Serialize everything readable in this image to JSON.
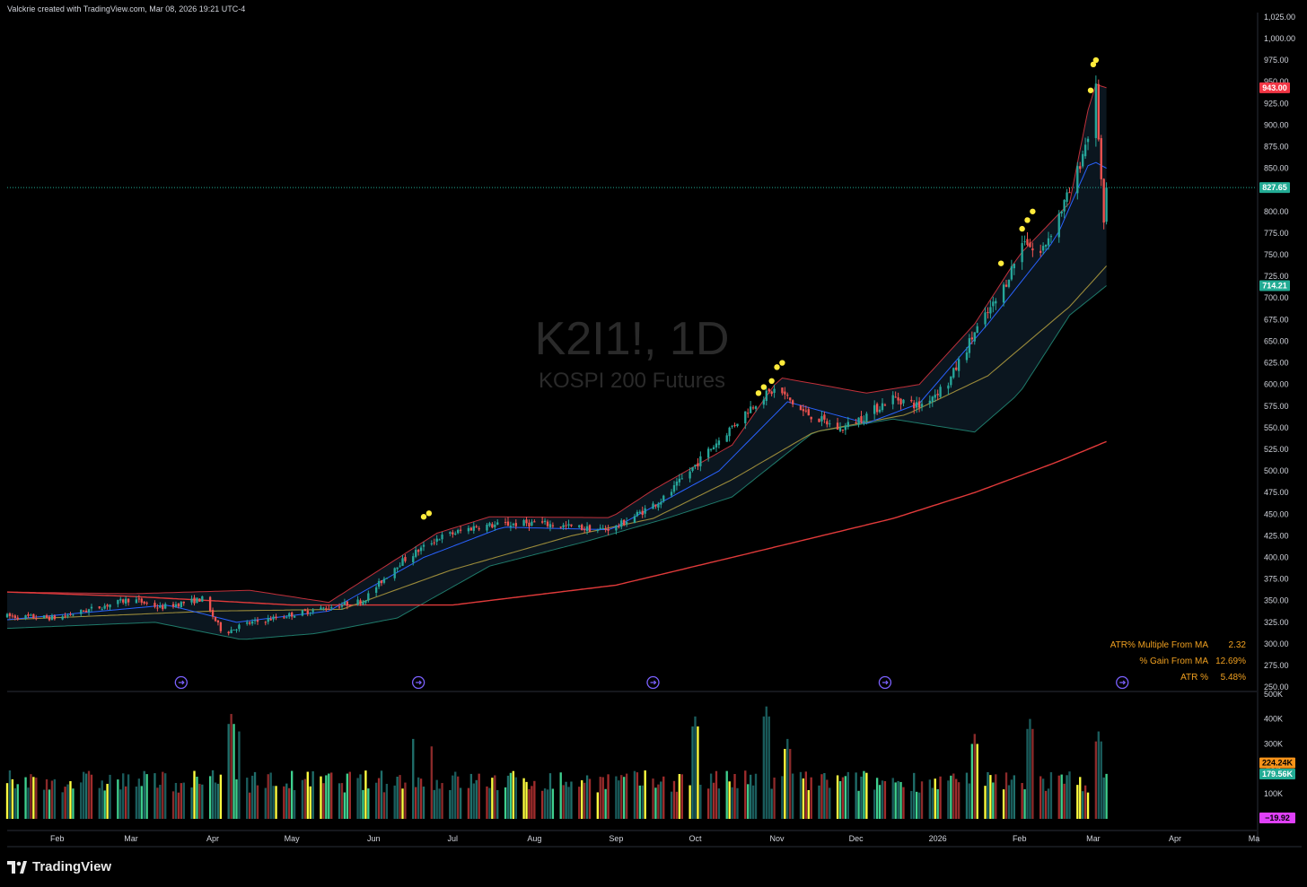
{
  "caption": "Valckrie created with TradingView.com, Mar 08, 2026 19:21 UTC-4",
  "brand": "TradingView",
  "watermark": {
    "symbol": "K2I1!, 1D",
    "name": "KOSPI 200 Futures"
  },
  "stats": [
    {
      "label": "ATR% Multiple From MA",
      "value": "2.32"
    },
    {
      "label": "% Gain From MA",
      "value": "12.69%"
    },
    {
      "label": "ATR %",
      "value": "5.48%"
    }
  ],
  "price_tags": [
    {
      "label": "943.00",
      "value": 943,
      "color": "#f23645"
    },
    {
      "label": "827.65",
      "value": 827.65,
      "color": "#22ab94"
    },
    {
      "label": "714.21",
      "value": 714.21,
      "color": "#22ab94"
    }
  ],
  "volume_tags": [
    {
      "label": "224.24K",
      "value": 224.24,
      "color": "#f7931a",
      "text_color": "#000000"
    },
    {
      "label": "179.56K",
      "value": 179.56,
      "color": "#22ab94",
      "text_color": "#ffffff"
    },
    {
      "label": "−19.92",
      "value": -19.92,
      "color": "#e040fb",
      "text_color": "#000000"
    }
  ],
  "chart_data": [
    {
      "type": "candlestick",
      "title": "K2I1!, 1D",
      "subtitle": "KOSPI 200 Futures",
      "y_ticks": [
        "250.00",
        "275.00",
        "300.00",
        "325.00",
        "350.00",
        "375.00",
        "400.00",
        "425.00",
        "450.00",
        "475.00",
        "500.00",
        "525.00",
        "550.00",
        "575.00",
        "600.00",
        "625.00",
        "650.00",
        "675.00",
        "700.00",
        "725.00",
        "750.00",
        "775.00",
        "800.00",
        "825.00",
        "850.00",
        "875.00",
        "900.00",
        "925.00",
        "950.00",
        "975.00",
        "1,000.00",
        "1,025.00"
      ],
      "ylim": [
        245,
        1030
      ],
      "x_ticks": [
        "Feb",
        "Mar",
        "Apr",
        "May",
        "Jun",
        "Jul",
        "Aug",
        "Sep",
        "Oct",
        "Nov",
        "Dec",
        "2026",
        "Feb",
        "Mar",
        "Apr",
        "Ma"
      ],
      "x_tick_dates": [
        "2025-02-01",
        "2025-03-01",
        "2025-04-01",
        "2025-05-01",
        "2025-06-01",
        "2025-07-01",
        "2025-08-01",
        "2025-09-01",
        "2025-10-01",
        "2025-11-01",
        "2025-12-01",
        "2026-01-01",
        "2026-02-01",
        "2026-03-01",
        "2026-04-01",
        "2026-05-01"
      ],
      "date_range": [
        "2025-01-13",
        "2026-05-02"
      ],
      "last_date": "2026-03-06",
      "price_path": [
        [
          "2025-01-13",
          332
        ],
        [
          "2025-02-01",
          330
        ],
        [
          "2025-02-20",
          345
        ],
        [
          "2025-03-01",
          352
        ],
        [
          "2025-03-12",
          342
        ],
        [
          "2025-03-28",
          352
        ],
        [
          "2025-04-05",
          312
        ],
        [
          "2025-04-12",
          322
        ],
        [
          "2025-05-01",
          334
        ],
        [
          "2025-05-28",
          350
        ],
        [
          "2025-06-10",
          392
        ],
        [
          "2025-06-25",
          422
        ],
        [
          "2025-07-10",
          436
        ],
        [
          "2025-08-01",
          440
        ],
        [
          "2025-08-25",
          432
        ],
        [
          "2025-09-01",
          435
        ],
        [
          "2025-09-20",
          470
        ],
        [
          "2025-10-05",
          520
        ],
        [
          "2025-10-25",
          583
        ],
        [
          "2025-11-01",
          595
        ],
        [
          "2025-11-10",
          570
        ],
        [
          "2025-11-25",
          548
        ],
        [
          "2025-12-05",
          565
        ],
        [
          "2025-12-15",
          585
        ],
        [
          "2025-12-25",
          575
        ],
        [
          "2026-01-05",
          602
        ],
        [
          "2026-01-15",
          660
        ],
        [
          "2026-01-25",
          705
        ],
        [
          "2026-02-03",
          770
        ],
        [
          "2026-02-08",
          745
        ],
        [
          "2026-02-15",
          790
        ],
        [
          "2026-02-22",
          835
        ],
        [
          "2026-02-28",
          900
        ],
        [
          "2026-03-02",
          940
        ],
        [
          "2026-03-04",
          835
        ],
        [
          "2026-03-05",
          780
        ],
        [
          "2026-03-06",
          827.65
        ]
      ],
      "ma_fast": [
        [
          "2025-01-13",
          328
        ],
        [
          "2025-03-15",
          345
        ],
        [
          "2025-04-10",
          325
        ],
        [
          "2025-05-15",
          338
        ],
        [
          "2025-06-20",
          400
        ],
        [
          "2025-07-20",
          435
        ],
        [
          "2025-08-30",
          432
        ],
        [
          "2025-10-10",
          500
        ],
        [
          "2025-11-05",
          580
        ],
        [
          "2025-12-05",
          555
        ],
        [
          "2025-12-25",
          578
        ],
        [
          "2026-01-20",
          670
        ],
        [
          "2026-02-15",
          770
        ],
        [
          "2026-02-28",
          860
        ],
        [
          "2026-03-06",
          850
        ]
      ],
      "ma_mid": [
        [
          "2025-01-13",
          328
        ],
        [
          "2025-04-01",
          338
        ],
        [
          "2025-05-20",
          340
        ],
        [
          "2025-06-30",
          385
        ],
        [
          "2025-08-15",
          425
        ],
        [
          "2025-09-15",
          445
        ],
        [
          "2025-10-15",
          490
        ],
        [
          "2025-11-15",
          545
        ],
        [
          "2025-12-20",
          565
        ],
        [
          "2026-01-20",
          610
        ],
        [
          "2026-02-20",
          690
        ],
        [
          "2026-03-06",
          737
        ]
      ],
      "ma_slow": [
        [
          "2025-01-13",
          360
        ],
        [
          "2025-03-01",
          355
        ],
        [
          "2025-05-01",
          345
        ],
        [
          "2025-07-01",
          345
        ],
        [
          "2025-09-01",
          368
        ],
        [
          "2025-10-15",
          400
        ],
        [
          "2025-12-15",
          445
        ],
        [
          "2026-01-15",
          475
        ],
        [
          "2026-02-15",
          510
        ],
        [
          "2026-03-06",
          534
        ]
      ],
      "band_upper": [
        [
          "2025-01-13",
          360
        ],
        [
          "2025-03-01",
          358
        ],
        [
          "2025-04-15",
          362
        ],
        [
          "2025-05-15",
          348
        ],
        [
          "2025-06-25",
          428
        ],
        [
          "2025-07-15",
          447
        ],
        [
          "2025-08-30",
          446
        ],
        [
          "2025-09-15",
          478
        ],
        [
          "2025-10-15",
          530
        ],
        [
          "2025-11-02",
          608
        ],
        [
          "2025-12-05",
          590
        ],
        [
          "2025-12-25",
          600
        ],
        [
          "2026-01-15",
          670
        ],
        [
          "2026-02-01",
          750
        ],
        [
          "2026-02-20",
          810
        ],
        [
          "2026-03-01",
          948
        ],
        [
          "2026-03-06",
          943
        ]
      ],
      "band_lower": [
        [
          "2025-01-13",
          318
        ],
        [
          "2025-03-10",
          325
        ],
        [
          "2025-04-12",
          305
        ],
        [
          "2025-05-10",
          312
        ],
        [
          "2025-06-10",
          330
        ],
        [
          "2025-07-15",
          390
        ],
        [
          "2025-08-20",
          418
        ],
        [
          "2025-09-20",
          445
        ],
        [
          "2025-10-15",
          470
        ],
        [
          "2025-11-15",
          545
        ],
        [
          "2025-12-15",
          560
        ],
        [
          "2026-01-15",
          545
        ],
        [
          "2026-02-01",
          590
        ],
        [
          "2026-02-20",
          680
        ],
        [
          "2026-03-06",
          714.21
        ]
      ],
      "signal_dots": [
        [
          "2025-06-20",
          447
        ],
        [
          "2025-06-22",
          451
        ],
        [
          "2025-10-25",
          590
        ],
        [
          "2025-10-27",
          597
        ],
        [
          "2025-10-30",
          604
        ],
        [
          "2025-11-01",
          620
        ],
        [
          "2025-11-03",
          625
        ],
        [
          "2026-01-25",
          740
        ],
        [
          "2026-02-02",
          780
        ],
        [
          "2026-02-04",
          790
        ],
        [
          "2026-02-06",
          800
        ],
        [
          "2026-02-28",
          940
        ],
        [
          "2026-03-01",
          970
        ],
        [
          "2026-03-02",
          975
        ]
      ],
      "event_markers": [
        "2025-03-20",
        "2025-06-18",
        "2025-09-15",
        "2025-12-12",
        "2026-03-12"
      ],
      "volume": {
        "y_ticks": [
          "100K",
          "200K",
          "300K",
          "400K",
          "500K"
        ],
        "ylim": [
          0,
          510
        ],
        "baseline": 150,
        "peaks": [
          [
            "2025-04-08",
            420
          ],
          [
            "2025-04-12",
            390
          ],
          [
            "2025-06-15",
            360
          ],
          [
            "2025-06-22",
            330
          ],
          [
            "2025-10-01",
            410
          ],
          [
            "2025-10-28",
            450
          ],
          [
            "2025-11-05",
            320
          ],
          [
            "2026-01-15",
            340
          ],
          [
            "2026-02-05",
            400
          ],
          [
            "2026-03-03",
            350
          ],
          [
            "2026-03-06",
            180
          ]
        ]
      }
    }
  ]
}
